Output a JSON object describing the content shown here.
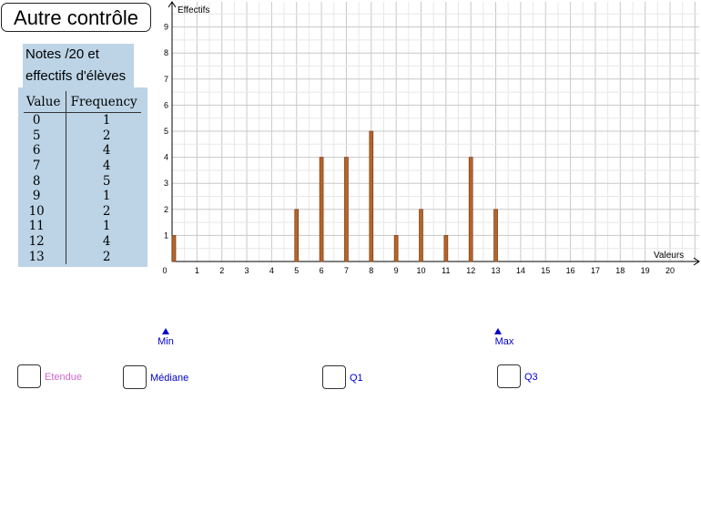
{
  "title_button": "Autre contrôle",
  "caption": {
    "line1": "Notes /20 et",
    "line2": "effectifs d'élèves"
  },
  "table": {
    "headers": [
      "Value",
      "Frequency"
    ],
    "rows": [
      [
        "0",
        "1"
      ],
      [
        "5",
        "2"
      ],
      [
        "6",
        "4"
      ],
      [
        "7",
        "4"
      ],
      [
        "8",
        "5"
      ],
      [
        "9",
        "1"
      ],
      [
        "10",
        "2"
      ],
      [
        "11",
        "1"
      ],
      [
        "12",
        "4"
      ],
      [
        "13",
        "2"
      ]
    ]
  },
  "chart_data": {
    "type": "bar",
    "ylabel": "Effectifs",
    "xlabel": "Valeurs",
    "x_ticks": [
      0,
      1,
      2,
      3,
      4,
      5,
      6,
      7,
      8,
      9,
      10,
      11,
      12,
      13,
      14,
      15,
      16,
      17,
      18,
      19,
      20
    ],
    "y_ticks": [
      1,
      2,
      3,
      4,
      5,
      6,
      7,
      8,
      9
    ],
    "xlim": [
      0,
      21
    ],
    "ylim": [
      0,
      10
    ],
    "grid": true,
    "bar_color": "#b5652b",
    "categories": [
      0,
      5,
      6,
      7,
      8,
      9,
      10,
      11,
      12,
      13
    ],
    "values": [
      1,
      2,
      4,
      4,
      5,
      1,
      2,
      1,
      4,
      2
    ]
  },
  "markers": {
    "min_label": "Min",
    "max_label": "Max"
  },
  "checkboxes": {
    "etendue": "Etendue",
    "mediane": "Médiane",
    "q1": "Q1",
    "q3": "Q3"
  },
  "colors": {
    "accent_blue": "#0000cc",
    "etendue_color": "#cc66cc"
  }
}
